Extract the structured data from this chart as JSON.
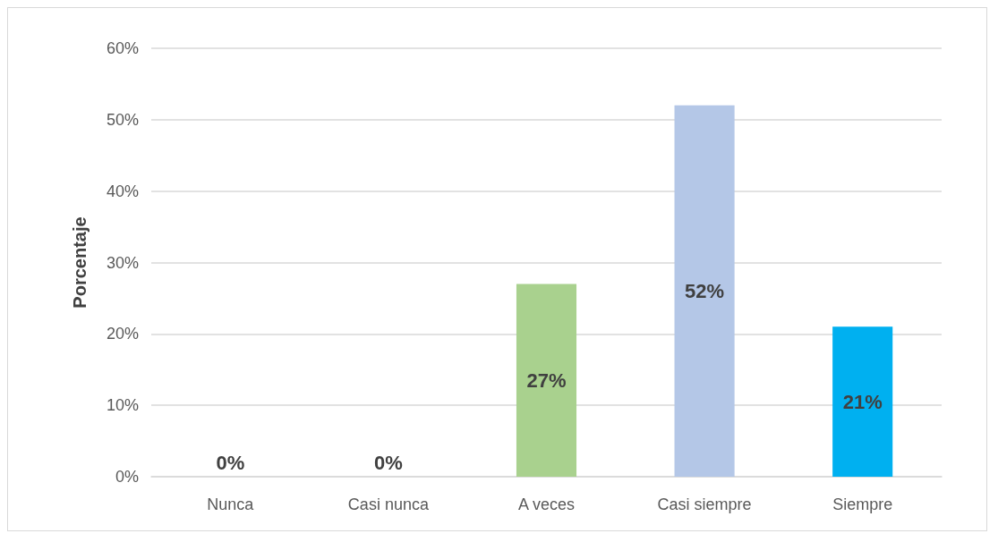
{
  "chart_data": {
    "type": "bar",
    "ylabel": "Porcentaje",
    "categories": [
      "Nunca",
      "Casi nunca",
      "A veces",
      "Casi siempre",
      "Siempre"
    ],
    "values": [
      0,
      0,
      27,
      52,
      21
    ],
    "colors": [
      "#c8c800",
      "#c89600",
      "#a9d18e",
      "#b4c7e7",
      "#00b0f0"
    ],
    "value_labels": [
      "0%",
      "0%",
      "27%",
      "52%",
      "21%"
    ],
    "ylim": [
      0,
      60
    ],
    "yticks": [
      {
        "value": 0,
        "label": "0%"
      },
      {
        "value": 10,
        "label": "10%"
      },
      {
        "value": 20,
        "label": "20%"
      },
      {
        "value": 30,
        "label": "30%"
      },
      {
        "value": 40,
        "label": "40%"
      },
      {
        "value": 50,
        "label": "50%"
      },
      {
        "value": 60,
        "label": "60%"
      }
    ],
    "grid": true
  }
}
